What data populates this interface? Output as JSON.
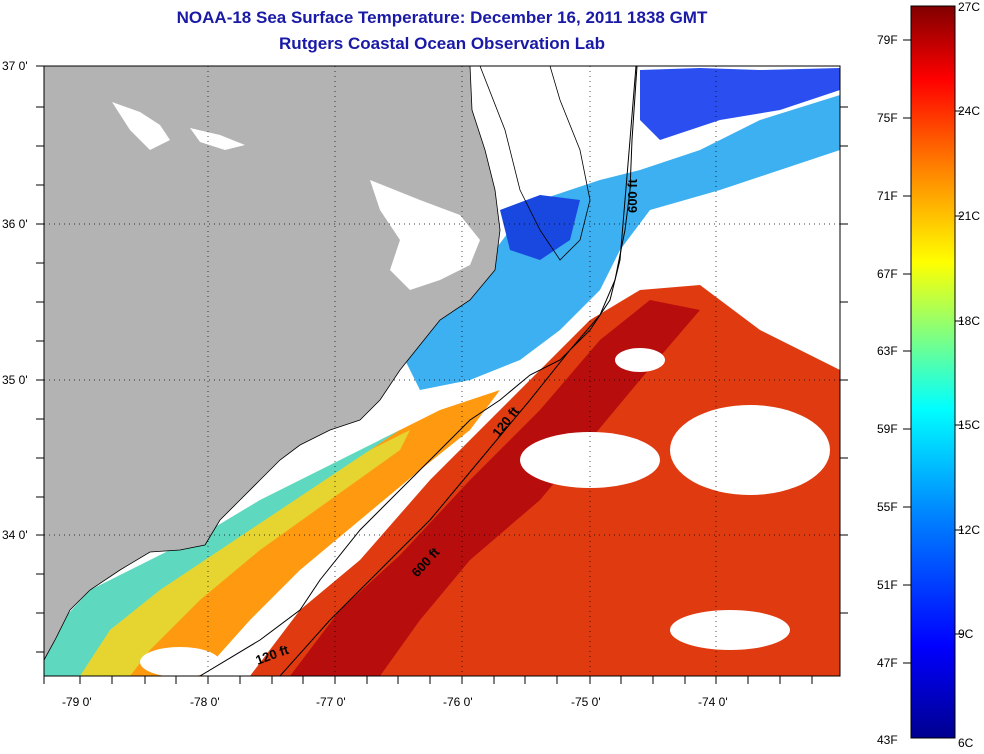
{
  "title": {
    "line1": "NOAA-18 Sea Surface Temperature:  December 16, 2011 1838 GMT",
    "line2": "Rutgers Coastal Ocean Observation Lab"
  },
  "map": {
    "lat_labels": [
      "37 0'",
      "36 0'",
      "35 0'",
      "34 0'"
    ],
    "lon_labels": [
      "-79 0'",
      "-78 0'",
      "-77 0'",
      "-76 0'",
      "-75 0'",
      "-74 0'"
    ],
    "contours": {
      "c120_a": "120 ft",
      "c120_b": "120 ft",
      "c600_a": "600 ft",
      "c600_b": "600 ft"
    },
    "colors": {
      "land": "#b3b3b3",
      "cloud": "#ffffff"
    }
  },
  "colorbar": {
    "fahrenheit_labels": [
      "79F",
      "75F",
      "71F",
      "67F",
      "63F",
      "59F",
      "55F",
      "51F",
      "47F",
      "43F"
    ],
    "celsius_labels": [
      "27C",
      "24C",
      "21C",
      "18C",
      "15C",
      "12C",
      "9C",
      "6C"
    ],
    "range_c": [
      6,
      27
    ],
    "stops": [
      "#00008f",
      "#0000ff",
      "#0080ff",
      "#00ffff",
      "#80ff80",
      "#ffff00",
      "#ff8000",
      "#ff0000",
      "#800000"
    ]
  }
}
